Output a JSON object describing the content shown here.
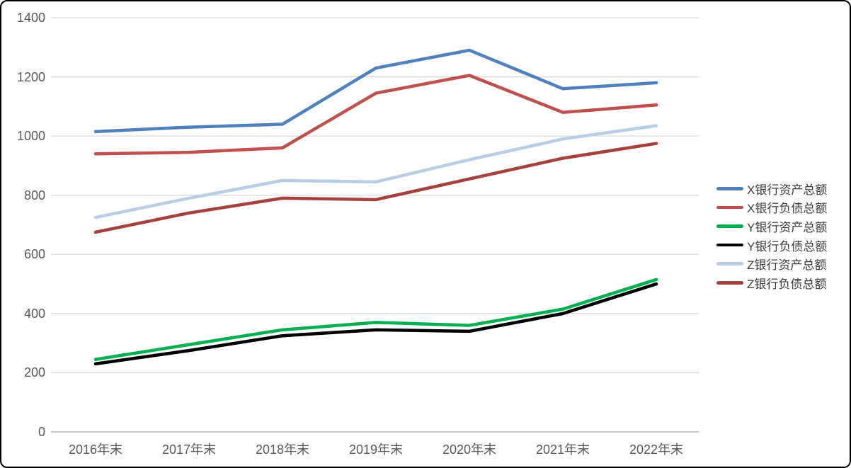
{
  "chart_data": {
    "type": "line",
    "title": "",
    "xlabel": "",
    "ylabel": "",
    "categories": [
      "2016年末",
      "2017年末",
      "2018年末",
      "2019年末",
      "2020年末",
      "2021年末",
      "2022年末"
    ],
    "series": [
      {
        "name": "X银行资产总额",
        "color": "#4F81BD",
        "values": [
          1015,
          1030,
          1040,
          1230,
          1290,
          1160,
          1180
        ]
      },
      {
        "name": "X银行负债总额",
        "color": "#C0504D",
        "values": [
          940,
          945,
          960,
          1145,
          1205,
          1080,
          1105
        ]
      },
      {
        "name": "Y银行资产总额",
        "color": "#00B050",
        "values": [
          245,
          295,
          345,
          370,
          360,
          415,
          515
        ]
      },
      {
        "name": "Y银行负债总额",
        "color": "#000000",
        "values": [
          230,
          275,
          325,
          345,
          340,
          400,
          500
        ]
      },
      {
        "name": "Z银行资产总额",
        "color": "#B9CDE5",
        "values": [
          725,
          790,
          850,
          845,
          920,
          990,
          1035
        ]
      },
      {
        "name": "Z银行负债总额",
        "color": "#A5423E",
        "values": [
          675,
          740,
          790,
          785,
          855,
          925,
          975
        ]
      }
    ],
    "ylim": [
      0,
      1400
    ],
    "y_ticks": [
      0,
      200,
      400,
      600,
      800,
      1000,
      1200,
      1400
    ],
    "grid": true,
    "legend_position": "right"
  },
  "colors": {
    "background": "#FFFFFF",
    "border": "#000000",
    "gridline": "#D9D9D9",
    "zero_axis": "#A6A6A6",
    "tick_label": "#595959",
    "legend_text": "#3B3B3B"
  }
}
